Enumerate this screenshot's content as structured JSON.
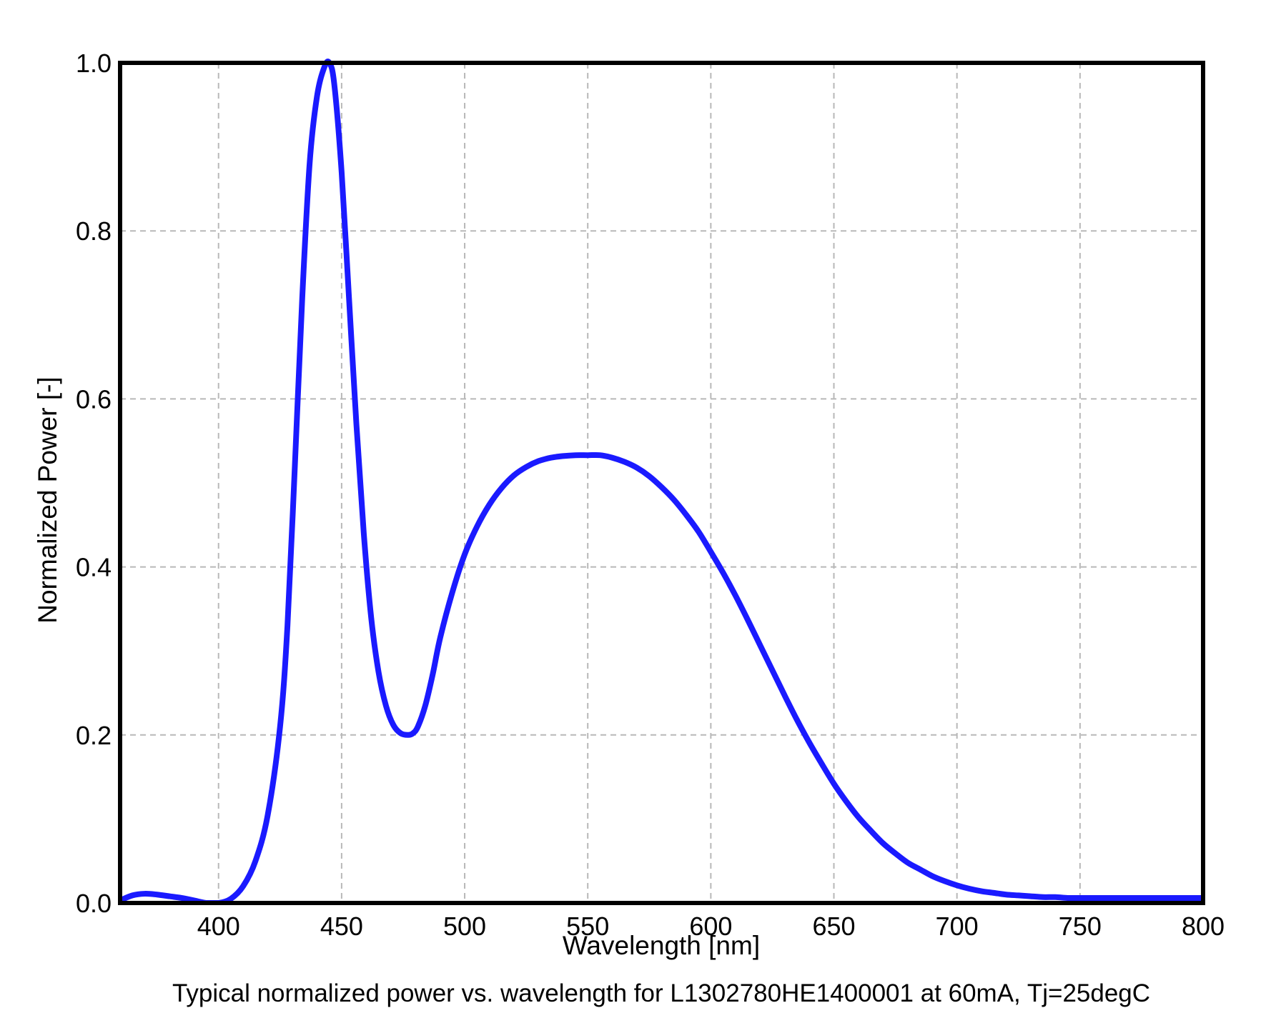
{
  "chart_data": {
    "type": "line",
    "title": "Typical normalized power vs. wavelength for L1302780HE1400001 at 60mA, Tj=25degC",
    "xlabel": "Wavelength [nm]",
    "ylabel": "Normalized Power [-]",
    "xlim": [
      360,
      800
    ],
    "ylim": [
      0.0,
      1.0
    ],
    "xticks": [
      400,
      450,
      500,
      550,
      600,
      650,
      700,
      750,
      800
    ],
    "xtick_labels": [
      "400",
      "450",
      "500",
      "550",
      "600",
      "650",
      "700",
      "750",
      "800"
    ],
    "yticks": [
      0.0,
      0.2,
      0.4,
      0.6,
      0.8,
      1.0
    ],
    "ytick_labels": [
      "0.0",
      "0.2",
      "0.4",
      "0.6",
      "0.8",
      "1.0"
    ],
    "grid": true,
    "line_color": "#1a1aff",
    "series": [
      {
        "x": [
          360,
          365,
          370,
          375,
          380,
          385,
          390,
          395,
          400,
          405,
          410,
          415,
          420,
          425,
          428,
          431,
          434,
          437,
          440,
          443,
          445,
          447,
          450,
          453,
          456,
          459,
          462,
          465,
          468,
          471,
          474,
          477,
          479,
          481,
          484,
          487,
          490,
          495,
          500,
          505,
          510,
          515,
          520,
          525,
          530,
          535,
          540,
          545,
          550,
          555,
          560,
          565,
          570,
          575,
          580,
          585,
          590,
          595,
          600,
          605,
          610,
          615,
          620,
          625,
          630,
          635,
          640,
          645,
          650,
          655,
          660,
          665,
          670,
          675,
          680,
          685,
          690,
          695,
          700,
          705,
          710,
          715,
          720,
          725,
          730,
          735,
          740,
          745,
          750,
          755,
          760,
          765,
          770,
          775,
          780,
          785,
          790,
          795,
          800
        ],
        "y": [
          0.003,
          0.009,
          0.011,
          0.01,
          0.008,
          0.006,
          0.003,
          0.0,
          0.0,
          0.005,
          0.02,
          0.05,
          0.105,
          0.21,
          0.33,
          0.52,
          0.72,
          0.88,
          0.96,
          0.995,
          1.0,
          0.975,
          0.87,
          0.72,
          0.57,
          0.44,
          0.34,
          0.275,
          0.235,
          0.212,
          0.202,
          0.2,
          0.202,
          0.21,
          0.235,
          0.272,
          0.315,
          0.37,
          0.415,
          0.448,
          0.474,
          0.494,
          0.509,
          0.519,
          0.526,
          0.53,
          0.532,
          0.533,
          0.533,
          0.533,
          0.53,
          0.525,
          0.518,
          0.508,
          0.495,
          0.48,
          0.462,
          0.442,
          0.418,
          0.393,
          0.366,
          0.337,
          0.307,
          0.277,
          0.247,
          0.218,
          0.191,
          0.166,
          0.142,
          0.121,
          0.102,
          0.086,
          0.071,
          0.059,
          0.048,
          0.04,
          0.032,
          0.026,
          0.021,
          0.017,
          0.014,
          0.012,
          0.01,
          0.009,
          0.008,
          0.007,
          0.007,
          0.006,
          0.006,
          0.006,
          0.006,
          0.006,
          0.006,
          0.006,
          0.006,
          0.006,
          0.006,
          0.006,
          0.006
        ]
      }
    ]
  }
}
